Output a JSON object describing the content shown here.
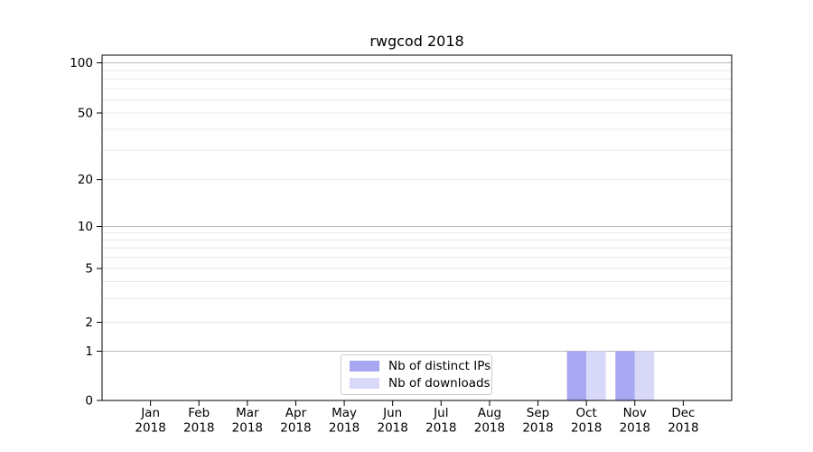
{
  "chart_data": {
    "type": "bar",
    "title": "rwgcod 2018",
    "categories": [
      "Jan",
      "Feb",
      "Mar",
      "Apr",
      "May",
      "Jun",
      "Jul",
      "Aug",
      "Sep",
      "Oct",
      "Nov",
      "Dec"
    ],
    "x_tick_second_line": "2018",
    "series": [
      {
        "name": "Nb of distinct IPs",
        "color": "#a7a7f2",
        "values": [
          0,
          0,
          0,
          0,
          0,
          0,
          0,
          0,
          0,
          1,
          1,
          0
        ]
      },
      {
        "name": "Nb of downloads",
        "color": "#d8d8f8",
        "values": [
          0,
          0,
          0,
          0,
          0,
          0,
          0,
          0,
          0,
          1,
          1,
          0
        ]
      }
    ],
    "yticks": [
      {
        "value": 0,
        "label": "0"
      },
      {
        "value": 1,
        "label": "1"
      },
      {
        "value": 2,
        "label": "2"
      },
      {
        "value": 5,
        "label": "5"
      },
      {
        "value": 10,
        "label": "10"
      },
      {
        "value": 20,
        "label": "20"
      },
      {
        "value": 50,
        "label": "50"
      },
      {
        "value": 100,
        "label": "100"
      }
    ],
    "ylim": [
      0,
      100
    ],
    "yscale": "log-like (0 anchored at baseline)",
    "grid": "horizontal",
    "y_major_gridline_values": [
      1,
      10,
      100
    ],
    "y_minor_gridline_values": [
      2,
      3,
      4,
      5,
      6,
      7,
      8,
      9,
      20,
      30,
      40,
      50,
      60,
      70,
      80,
      90
    ],
    "legend_position": "bottom-center",
    "colors": {
      "grid_major": "#b9b9b9",
      "grid_minor": "#e9e9e9",
      "axis": "#000000",
      "text": "#000000",
      "background": "#ffffff"
    }
  }
}
